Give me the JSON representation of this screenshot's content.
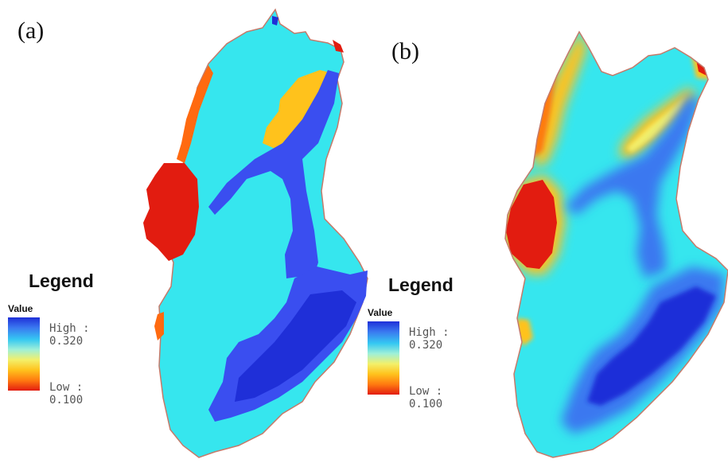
{
  "panels": [
    {
      "label": "(a)",
      "legend": {
        "title": "Legend",
        "field": "Value",
        "high": "High : 0.320",
        "low": "Low : 0.100"
      }
    },
    {
      "label": "(b)",
      "legend": {
        "title": "Legend",
        "field": "Value",
        "high": "High : 0.320",
        "low": "Low : 0.100"
      }
    }
  ],
  "colors": {
    "high": "#1f2fd8",
    "mid_high": "#3a78f0",
    "cyan": "#36e6ee",
    "orange": "#ffc21c",
    "low": "#e21c10"
  },
  "value_range": [
    0.1,
    0.32
  ]
}
